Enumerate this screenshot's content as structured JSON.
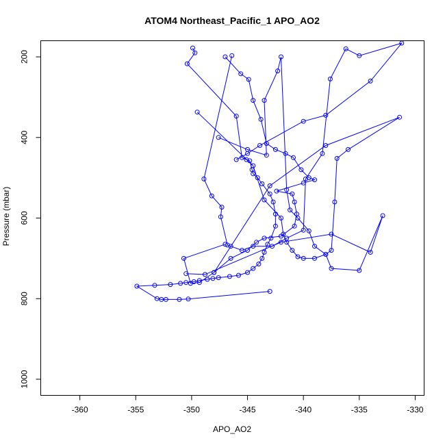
{
  "chart_data": {
    "type": "line",
    "title": "ATOM4 Northeast_Pacific_1 APO_AO2",
    "xlabel": "APO_AO2",
    "ylabel": "Pressure (mbar)",
    "xlim": [
      -363.5,
      -329.2
    ],
    "ylim": [
      1040,
      160
    ],
    "y_axis_inverted": true,
    "x_ticks": [
      -360,
      -355,
      -350,
      -345,
      -340,
      -335,
      -330
    ],
    "y_ticks": [
      200,
      400,
      600,
      800,
      1000
    ],
    "grid": false,
    "legend": "none",
    "marker": "open-circle",
    "colors": {
      "series": "#0000ff",
      "axes": "#000000"
    },
    "series": [
      {
        "x": [
          -349.9,
          -349.7,
          -350.4,
          -346.0,
          -345.5,
          -345.1,
          -344.8,
          -344.6,
          -344.5,
          -344.1,
          -343.7,
          -343.0,
          -342.7,
          -342.5,
          -342.5,
          -342.9,
          -343.2,
          -343.5,
          -343.7,
          -344.0,
          -344.5,
          -345.0,
          -345.8,
          -346.6,
          -347.6,
          -348.1,
          -348.6,
          -349.3,
          -349.8,
          -350.5,
          -351.0,
          -351.9,
          -353.3,
          -354.9,
          -353.1,
          -352.7,
          -352.3,
          -351.1,
          -350.3,
          -343.0
        ],
        "y": [
          178,
          190,
          217,
          347,
          450,
          455,
          458,
          480,
          490,
          500,
          515,
          540,
          560,
          590,
          620,
          650,
          665,
          685,
          700,
          714,
          725,
          735,
          742,
          745,
          748,
          750,
          752,
          755,
          758,
          760,
          762,
          765,
          767,
          769,
          800,
          802,
          802,
          802,
          801,
          782
        ]
      },
      {
        "x": [
          -349.5,
          -344.5,
          -343.5,
          -342.0,
          -341.8,
          -341.5,
          -341.0,
          -340.5,
          -340.0,
          -339.0,
          -338.0,
          -337.5,
          -337.2,
          -337.0,
          -336.0,
          -331.4,
          -338.0,
          -343.0,
          -348.0
        ],
        "y": [
          337,
          470,
          555,
          600,
          640,
          660,
          680,
          696,
          700,
          700,
          690,
          680,
          560,
          452,
          430,
          350,
          420,
          520,
          735
        ]
      },
      {
        "x": [
          -347.6,
          -345.0,
          -343.3,
          -343.5,
          -342.3,
          -342.0,
          -341.5,
          -341.2,
          -340.5,
          -339.5,
          -339.0,
          -338.0,
          -337.5,
          -335.0,
          -332.9,
          -334.0,
          -337.5,
          -342.0,
          -348.8,
          -350.5
        ],
        "y": [
          400,
          430,
          444,
          308,
          235,
          200,
          530,
          580,
          600,
          632,
          670,
          690,
          725,
          730,
          594,
          685,
          640,
          660,
          740,
          738
        ]
      },
      {
        "x": [
          -346.4,
          -348.9,
          -348.2,
          -347.3,
          -347.4,
          -346.8,
          -346.5,
          -345.5,
          -344.5,
          -342.8,
          -341.5,
          -340.0,
          -339.8,
          -338.3,
          -337.6,
          -336.2,
          -335.0,
          -331.2,
          -334.0,
          -338.0,
          -340.0,
          -343.9,
          -345.0,
          -346.0
        ],
        "y": [
          197,
          503,
          545,
          573,
          597,
          667,
          670,
          680,
          670,
          670,
          650,
          630,
          503,
          440,
          255,
          180,
          197,
          166,
          260,
          345,
          360,
          420,
          440,
          455
        ]
      },
      {
        "x": [
          -347.0,
          -345.6,
          -344.9,
          -344.5,
          -343.8,
          -343.3,
          -342.5,
          -341.6,
          -340.9,
          -340.2,
          -339.5,
          -339.0,
          -340.0,
          -342.4,
          -341.0,
          -340.8,
          -340.6,
          -340.8,
          -342.0,
          -343.5,
          -344.2,
          -345.0,
          -346.5,
          -348.0,
          -349.3,
          -350.1,
          -350.7,
          -347.0
        ],
        "y": [
          200,
          242,
          256,
          308,
          355,
          415,
          430,
          440,
          450,
          480,
          500,
          505,
          513,
          533,
          540,
          560,
          590,
          620,
          645,
          650,
          660,
          680,
          700,
          735,
          760,
          762,
          700,
          665
        ]
      }
    ]
  }
}
